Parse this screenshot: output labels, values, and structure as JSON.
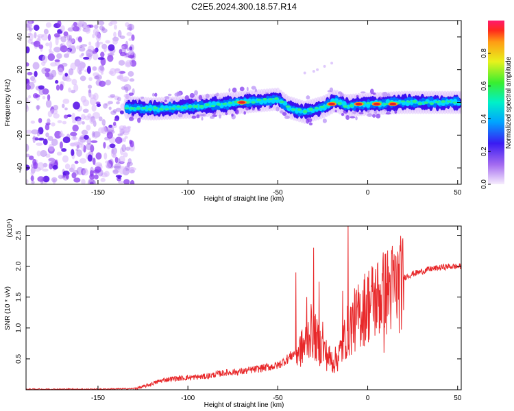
{
  "title": "C2E5.2024.300.18.57.R14",
  "colors": {
    "snr_line": "#e8282a",
    "noise": "#a46bf0",
    "background": "#ffffff"
  },
  "chart_data": [
    {
      "type": "heatmap",
      "xlabel": "Height of straight line (km)",
      "ylabel": "Frequency (Hz)",
      "xlim": [
        -190,
        52
      ],
      "ylim": [
        -50,
        50
      ],
      "x_ticks": [
        -150,
        -100,
        -50,
        0,
        50
      ],
      "y_ticks": [
        -40,
        -20,
        0,
        20,
        40
      ],
      "colorbar": {
        "label": "Normalized spectral amplitude",
        "range": [
          0,
          1
        ],
        "ticks": [
          "0.0",
          "0.2",
          "0.4",
          "0.6",
          "0.8"
        ],
        "tick_values": [
          0,
          0.2,
          0.4,
          0.6,
          0.8
        ]
      },
      "noise_region": [
        -190,
        -130
      ],
      "ridge": [
        {
          "x": -135,
          "y": -3
        },
        {
          "x": -120,
          "y": -4
        },
        {
          "x": -100,
          "y": -3
        },
        {
          "x": -80,
          "y": -1
        },
        {
          "x": -70,
          "y": 0
        },
        {
          "x": -60,
          "y": 1
        },
        {
          "x": -50,
          "y": 2
        },
        {
          "x": -44,
          "y": -3
        },
        {
          "x": -35,
          "y": -6
        },
        {
          "x": -25,
          "y": -3
        },
        {
          "x": -18,
          "y": 1
        },
        {
          "x": -12,
          "y": -2
        },
        {
          "x": 0,
          "y": -1
        },
        {
          "x": 20,
          "y": 0
        },
        {
          "x": 52,
          "y": 0
        }
      ],
      "peaks": [
        {
          "x": -70,
          "y": 0
        },
        {
          "x": -20,
          "y": -1
        },
        {
          "x": -5,
          "y": -1
        },
        {
          "x": 5,
          "y": -1
        },
        {
          "x": 14,
          "y": -1
        }
      ]
    },
    {
      "type": "line",
      "xlabel": "Height of straight line (km)",
      "ylabel": "SNR (10 * v/v)",
      "y_multiplier": "(x10⁴)",
      "xlim": [
        -190,
        52
      ],
      "ylim": [
        0,
        2.65
      ],
      "x_ticks": [
        -150,
        -100,
        -50,
        0,
        50
      ],
      "y_ticks": [
        0.5,
        1.0,
        1.5,
        2.0,
        2.5
      ],
      "series": [
        {
          "x": [
            -190,
            -170,
            -150,
            -130,
            -125,
            -120,
            -115,
            -110,
            -100,
            -90,
            -80,
            -70,
            -60,
            -50,
            -45,
            -40,
            -35,
            -32,
            -30,
            -28,
            -25,
            -22,
            -20,
            -18,
            -15,
            -12,
            -10,
            -8,
            -5,
            0,
            5,
            10,
            15,
            20,
            25,
            30,
            35,
            40,
            45,
            50,
            52
          ],
          "values": [
            0.01,
            0.01,
            0.01,
            0.02,
            0.05,
            0.1,
            0.15,
            0.18,
            0.2,
            0.22,
            0.28,
            0.3,
            0.35,
            0.4,
            0.5,
            0.62,
            0.75,
            1.0,
            0.95,
            0.8,
            0.7,
            0.55,
            0.5,
            0.5,
            0.65,
            0.95,
            1.05,
            1.15,
            1.25,
            1.45,
            1.55,
            1.65,
            1.75,
            1.82,
            1.88,
            1.92,
            1.96,
            1.98,
            2.0,
            2.0,
            2.0
          ]
        }
      ],
      "spikes": [
        {
          "x": -40,
          "y": 1.9
        },
        {
          "x": -34,
          "y": 1.5
        },
        {
          "x": -30,
          "y": 2.3
        },
        {
          "x": -27,
          "y": 1.75
        },
        {
          "x": -25,
          "y": 1.1
        },
        {
          "x": -11,
          "y": 2.65
        },
        {
          "x": -14,
          "y": 1.6
        },
        {
          "x": 9,
          "y": 0.6
        }
      ]
    }
  ]
}
